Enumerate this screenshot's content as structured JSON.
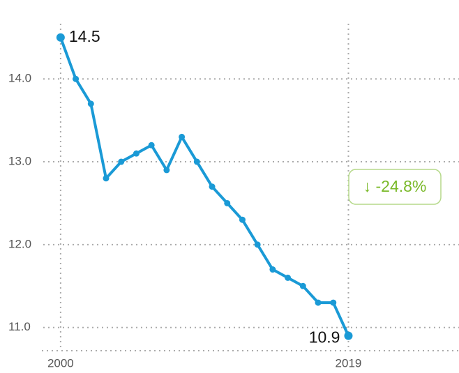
{
  "chart_data": {
    "type": "line",
    "x": [
      2000,
      2001,
      2002,
      2003,
      2004,
      2005,
      2006,
      2007,
      2008,
      2009,
      2010,
      2011,
      2012,
      2013,
      2014,
      2015,
      2016,
      2017,
      2018,
      2019
    ],
    "series": [
      {
        "color": "#1a9ad6",
        "values": [
          14.5,
          14.0,
          13.7,
          12.8,
          13.0,
          13.1,
          13.2,
          12.9,
          13.3,
          13.0,
          12.7,
          12.5,
          12.3,
          12.0,
          11.7,
          11.6,
          11.5,
          11.3,
          11.3,
          10.9
        ]
      }
    ],
    "xlim": [
      1996,
      2026.3
    ],
    "xticks": [
      2000,
      2019
    ],
    "ylim": [
      10.72,
      14.7
    ],
    "yticks": [
      {
        "value": 11,
        "label": "11.0"
      },
      {
        "value": 12,
        "label": "12.0"
      },
      {
        "value": 13,
        "label": "13.0"
      },
      {
        "value": 14,
        "label": "14.0"
      }
    ],
    "grid": true,
    "annotation": {
      "text": "↓ -24.8%",
      "color": "#7ab929"
    }
  }
}
